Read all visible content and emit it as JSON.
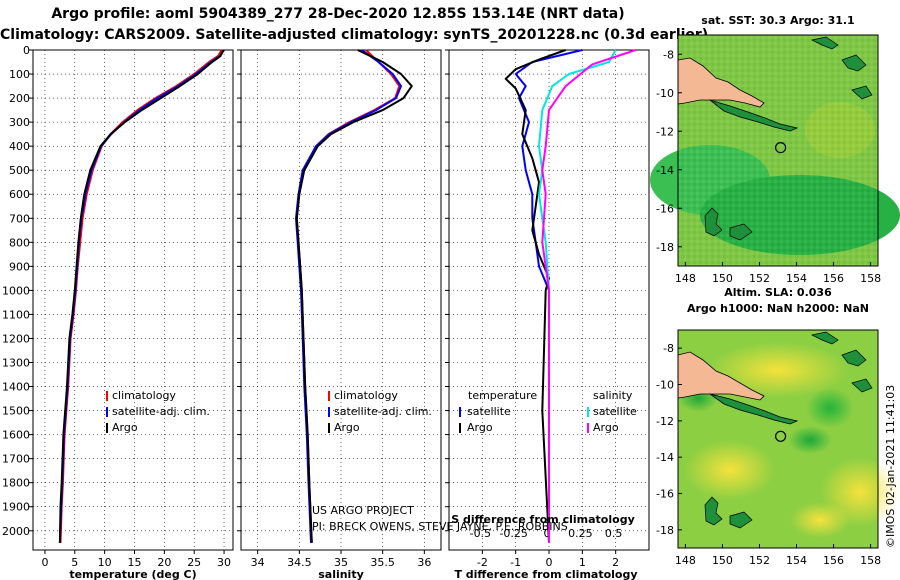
{
  "header": {
    "line1": "Argo profile: aoml 5904389_277 28-Dec-2020 12.85S 153.14E (NRT data)",
    "line2": "Climatology: CARS2009. Satellite-adjusted climatology: synTS_20201228.nc (0.3d earlier)"
  },
  "colors": {
    "argo": "#000000",
    "climatology": "#ff0000",
    "satellite": "#0000ff",
    "argo_salinity": "#ff00ff",
    "satellite_salinity": "#00e5e5"
  },
  "chart_data": [
    {
      "type": "line",
      "name": "temperature-profile",
      "xlabel": "temperature (deg C)",
      "ylabel": "",
      "xlim": [
        -2,
        31.5
      ],
      "ylim": [
        2080,
        0
      ],
      "xticks": [
        0,
        5,
        10,
        15,
        20,
        25,
        30
      ],
      "yticks": [
        0,
        100,
        200,
        300,
        400,
        500,
        600,
        700,
        800,
        900,
        1000,
        1100,
        1200,
        1300,
        1400,
        1500,
        1600,
        1700,
        1800,
        1900,
        2000
      ],
      "legend": [
        "climatology",
        "satellite-adj. clim.",
        "Argo"
      ],
      "series": [
        {
          "name": "climatology",
          "color": "#ff0000",
          "x": [
            29.6,
            29.0,
            27.5,
            25.0,
            22.0,
            18.5,
            15.5,
            13.0,
            11.0,
            9.5,
            8.0,
            7.0,
            6.3,
            5.9,
            5.5,
            5.2,
            4.8,
            4.3,
            3.9,
            3.6,
            3.3,
            3.0,
            2.8,
            2.6
          ],
          "y": [
            0,
            25,
            50,
            100,
            150,
            200,
            250,
            300,
            350,
            400,
            500,
            600,
            700,
            800,
            900,
            1000,
            1100,
            1200,
            1400,
            1500,
            1600,
            1800,
            1900,
            2050
          ]
        },
        {
          "name": "satellite-adj. clim.",
          "color": "#0000ff",
          "x": [
            30.0,
            29.3,
            27.8,
            25.3,
            22.3,
            18.8,
            15.8,
            13.3,
            11.1,
            9.4,
            7.8,
            6.8,
            6.1,
            5.7,
            5.4,
            5.1,
            4.7,
            4.2,
            3.8,
            3.5,
            3.2,
            2.9,
            2.7,
            2.5
          ],
          "y": [
            0,
            25,
            50,
            100,
            150,
            200,
            250,
            300,
            350,
            400,
            500,
            600,
            700,
            800,
            900,
            1000,
            1100,
            1200,
            1400,
            1500,
            1600,
            1800,
            1900,
            2050
          ]
        },
        {
          "name": "Argo",
          "color": "#000000",
          "x": [
            29.9,
            29.4,
            28.0,
            25.6,
            22.6,
            19.4,
            16.2,
            13.4,
            11.0,
            9.3,
            7.6,
            6.6,
            6.0,
            5.6,
            5.3,
            5.0,
            4.6,
            4.1,
            3.7,
            3.4,
            3.1,
            2.8,
            2.6,
            2.5
          ],
          "y": [
            0,
            25,
            50,
            100,
            150,
            200,
            250,
            300,
            350,
            400,
            500,
            600,
            700,
            800,
            900,
            1000,
            1100,
            1200,
            1400,
            1500,
            1600,
            1800,
            1900,
            2050
          ]
        }
      ]
    },
    {
      "type": "line",
      "name": "salinity-profile",
      "xlabel": "salinity",
      "ylabel": "",
      "xlim": [
        33.8,
        36.2
      ],
      "ylim": [
        2080,
        0
      ],
      "xticks": [
        34,
        34.5,
        35,
        35.5,
        36
      ],
      "legend": [
        "climatology",
        "satellite-adj. clim.",
        "Argo"
      ],
      "series": [
        {
          "name": "climatology",
          "color": "#ff0000",
          "x": [
            35.3,
            35.45,
            35.6,
            35.7,
            35.65,
            35.4,
            35.1,
            34.85,
            34.7,
            34.55,
            34.5,
            34.47,
            34.49,
            34.51,
            34.53,
            34.55,
            34.57,
            34.6,
            34.62,
            34.65
          ],
          "y": [
            0,
            50,
            100,
            150,
            200,
            250,
            300,
            350,
            400,
            500,
            600,
            700,
            800,
            900,
            1000,
            1200,
            1400,
            1600,
            1800,
            2050
          ]
        },
        {
          "name": "satellite-adj. clim.",
          "color": "#0000ff",
          "x": [
            35.25,
            35.45,
            35.62,
            35.72,
            35.66,
            35.42,
            35.12,
            34.86,
            34.7,
            34.54,
            34.49,
            34.46,
            34.48,
            34.5,
            34.52,
            34.54,
            34.56,
            34.59,
            34.61,
            34.64
          ],
          "y": [
            0,
            50,
            100,
            150,
            200,
            250,
            300,
            350,
            400,
            500,
            600,
            700,
            800,
            900,
            1000,
            1200,
            1400,
            1600,
            1800,
            2050
          ]
        },
        {
          "name": "Argo",
          "color": "#000000",
          "x": [
            35.2,
            35.5,
            35.72,
            35.85,
            35.75,
            35.5,
            35.15,
            34.88,
            34.72,
            34.56,
            34.5,
            34.47,
            34.49,
            34.51,
            34.53,
            34.55,
            34.57,
            34.6,
            34.62,
            34.65
          ],
          "y": [
            0,
            50,
            100,
            150,
            200,
            250,
            300,
            350,
            400,
            500,
            600,
            700,
            800,
            900,
            1000,
            1200,
            1400,
            1600,
            1800,
            2050
          ]
        }
      ],
      "credit_line1": "US ARGO PROJECT",
      "credit_line2": "PI: BRECK OWENS, STEVE JAYNE, P.E. ROBBINS"
    },
    {
      "type": "line",
      "name": "difference-profile",
      "xlabel": "T difference from climatology",
      "top_axis_label": "S difference from climatology",
      "xlim": [
        -3,
        3
      ],
      "ylim": [
        2080,
        0
      ],
      "xticks": [
        -2,
        -1,
        0,
        1,
        2
      ],
      "top_xticks": [
        "-0.5",
        "-0.25",
        "0",
        "0.25",
        "0.5"
      ],
      "legend_temperature_title": "temperature",
      "legend_salinity_title": "salinity",
      "legend_satellite": "satellite",
      "legend_argo": "Argo",
      "series": [
        {
          "name": "temperature satellite",
          "color": "#0000ff",
          "x": [
            1.0,
            -0.5,
            -1.0,
            -0.7,
            -0.9,
            -0.6,
            -0.8,
            -0.7,
            -0.5,
            -0.5,
            -0.4,
            -0.3,
            0.0,
            0.0,
            0.0
          ],
          "y": [
            0,
            50,
            100,
            150,
            200,
            300,
            400,
            500,
            600,
            700,
            800,
            900,
            1000,
            1500,
            2050
          ]
        },
        {
          "name": "temperature Argo",
          "color": "#000000",
          "x": [
            0.5,
            -0.3,
            -1.0,
            -1.3,
            -1.0,
            -0.7,
            -0.8,
            -0.5,
            -0.3,
            -0.4,
            -0.5,
            -0.3,
            0.0,
            -0.1,
            -0.2,
            0.0
          ],
          "y": [
            0,
            40,
            80,
            120,
            160,
            250,
            350,
            450,
            550,
            650,
            750,
            850,
            950,
            1000,
            1500,
            2050
          ]
        },
        {
          "name": "salinity satellite",
          "color": "#00e5e5",
          "x": [
            2.0,
            1.8,
            0.6,
            0.1,
            -0.2,
            -0.3,
            -0.2,
            -0.3,
            -0.1,
            0.0,
            0.0,
            0.0
          ],
          "y": [
            0,
            50,
            100,
            150,
            250,
            400,
            500,
            600,
            800,
            1000,
            1500,
            2050
          ]
        },
        {
          "name": "salinity Argo",
          "color": "#ff00ff",
          "x": [
            2.6,
            1.3,
            0.5,
            0.0,
            -0.1,
            -0.2,
            -0.1,
            -0.2,
            0.0,
            0.0
          ],
          "y": [
            0,
            60,
            150,
            250,
            400,
            500,
            600,
            800,
            1000,
            2050
          ]
        }
      ]
    }
  ],
  "maps": {
    "sst_title": "sat. SST: 30.3 Argo: 31.1",
    "sla_title1": "Altim. SLA: 0.036",
    "sla_title2": "Argo h1000: NaN h2000: NaN",
    "lat_ticks": [
      -8,
      -10,
      -12,
      -14,
      -16,
      -18
    ],
    "lon_ticks": [
      148,
      150,
      152,
      154,
      156,
      158
    ],
    "argo_lon": 153.14,
    "argo_lat": -12.85
  },
  "timestamp": "©IMOS 02-Jan-2021 11:41:03"
}
